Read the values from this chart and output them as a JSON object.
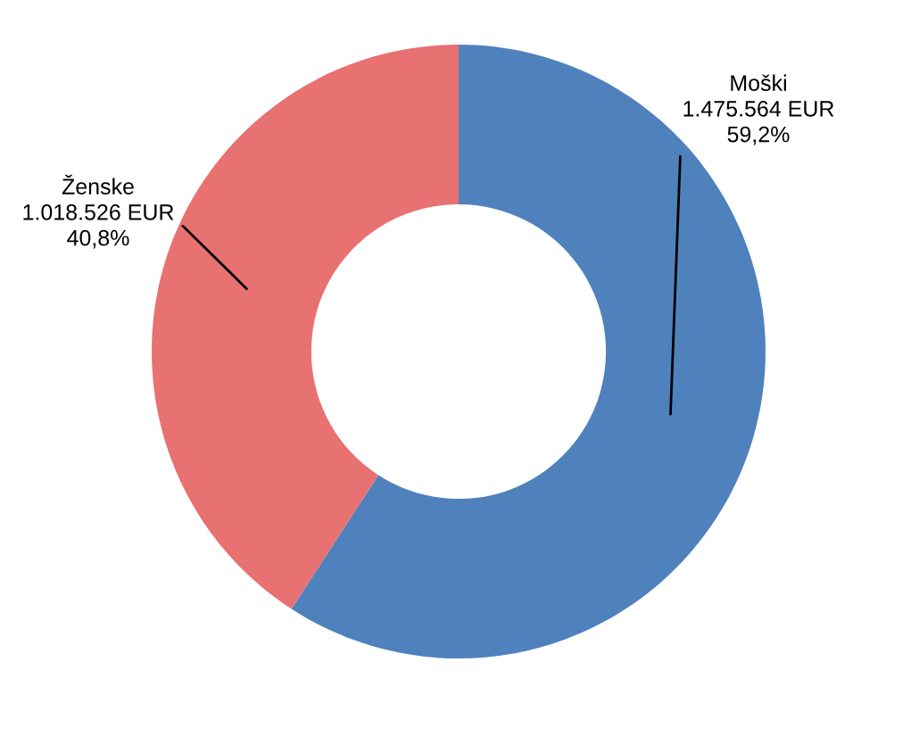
{
  "chart_data": {
    "type": "donut",
    "categories": [
      "Moški",
      "Ženske"
    ],
    "values": [
      1475564,
      1018526
    ],
    "colors": [
      "#4f81bd",
      "#e87171"
    ],
    "value_labels": [
      "1.475.564 EUR\n59,2%",
      "1.018.526 EUR\n40,8%"
    ]
  }
}
